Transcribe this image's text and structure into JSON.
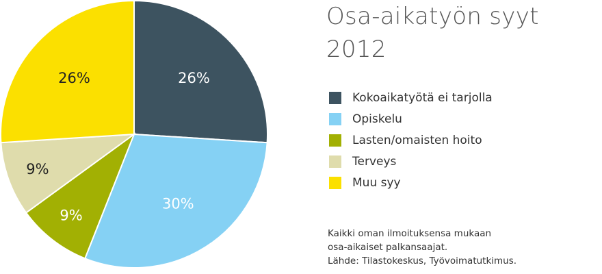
{
  "chart_data": {
    "type": "pie",
    "title_lines": [
      "Osa-aikatyön syyt",
      "2012"
    ],
    "slices": [
      {
        "name": "Kokoaikatyötä ei tarjolla",
        "value": 26,
        "label": "26%",
        "color": "#3d5360",
        "label_color": "#ffffff"
      },
      {
        "name": "Opiskelu",
        "value": 30,
        "label": "30%",
        "color": "#85d1f4",
        "label_color": "#ffffff"
      },
      {
        "name": "Lasten/omaisten hoito",
        "value": 9,
        "label": "9%",
        "color": "#a2b003",
        "label_color": "#ffffff"
      },
      {
        "name": "Terveys",
        "value": 9,
        "label": "9%",
        "color": "#dfdcac",
        "label_color": "#222222"
      },
      {
        "name": "Muu syy",
        "value": 26,
        "label": "26%",
        "color": "#fbe000",
        "label_color": "#222222"
      }
    ],
    "start": "12 o'clock",
    "direction": "clockwise"
  },
  "footnote": [
    "Kaikki oman ilmoituksensa mukaan",
    "osa-aikaiset palkansaajat.",
    "Lähde: Tilastokeskus, Työvoimatutkimus."
  ]
}
